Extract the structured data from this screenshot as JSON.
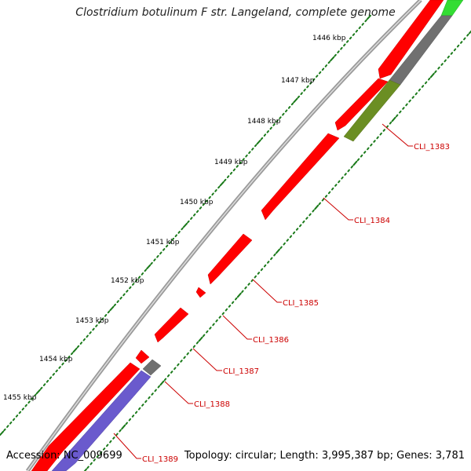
{
  "title": "Clostridium botulinum F str. Langeland, complete genome",
  "footer": {
    "accession": "Accession: NC_009699",
    "summary": "Topology: circular; Length: 3,995,387 bp; Genes: 3,781"
  },
  "ticks": [
    "1446 kbp",
    "1447 kbp",
    "1448 kbp",
    "1449 kbp",
    "1450 kbp",
    "1451 kbp",
    "1452 kbp",
    "1453 kbp",
    "1454 kbp",
    "1455 kbp"
  ],
  "genes": [
    "CLI_1383",
    "CLI_1384",
    "CLI_1385",
    "CLI_1386",
    "CLI_1387",
    "CLI_1388",
    "CLI_1389"
  ],
  "colors": {
    "cds_forward": "#ff0000",
    "gene_gray": "#707070",
    "gene_green": "#6b8e23",
    "gene_lightgreen": "#33dd33",
    "gene_purple": "#6a5acd",
    "tick": "#1a7a1a",
    "label": "#cc0000"
  }
}
